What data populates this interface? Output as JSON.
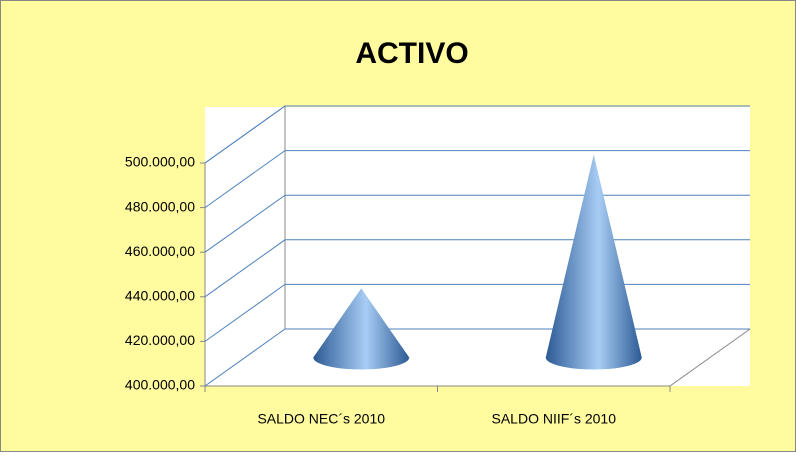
{
  "chart_data": {
    "type": "cone",
    "title": "ACTIVO",
    "categories": [
      "SALDO NEC´s  2010",
      "SALDO NIIF´s  2010"
    ],
    "values": [
      431000,
      491000
    ],
    "color": "#4f81bd",
    "ylim": [
      400000,
      500000
    ],
    "yticks": [
      {
        "value": 400000,
        "label": "400.000,00"
      },
      {
        "value": 420000,
        "label": "420.000,00"
      },
      {
        "value": 440000,
        "label": "440.000,00"
      },
      {
        "value": 460000,
        "label": "460.000,00"
      },
      {
        "value": 480000,
        "label": "480.000,00"
      },
      {
        "value": 500000,
        "label": "500.000,00"
      }
    ],
    "grid": true
  }
}
